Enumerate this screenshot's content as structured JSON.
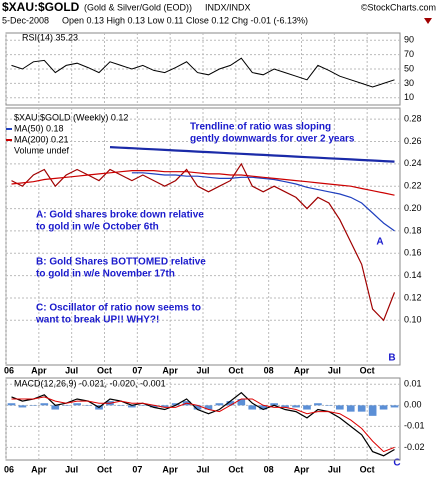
{
  "header": {
    "symbol": "$XAU:$GOLD",
    "description": "(Gold & Silver/Gold (EOD))",
    "exchange": "INDX/INDX",
    "source": "©StockCharts.com",
    "date": "5-Dec-2008",
    "quote": "Open 0.13 High 0.13 Low 0.11 Close 0.12 Chg -0.01 (-6.13%)"
  },
  "chart_data": [
    {
      "type": "line",
      "legend": "RSI(14) 35.23",
      "categories": [
        "06",
        null,
        null,
        "Apr",
        null,
        null,
        "Jul",
        null,
        null,
        "Oct",
        null,
        null,
        "07",
        null,
        null,
        "Apr",
        null,
        null,
        "Jul",
        null,
        null,
        "Oct",
        null,
        null,
        "08",
        null,
        null,
        "Apr",
        null,
        null,
        "Jul",
        null,
        null,
        "Oct",
        null,
        null
      ],
      "series": [
        {
          "color": "#000000",
          "values": [
            55,
            50,
            60,
            62,
            45,
            55,
            58,
            52,
            45,
            60,
            55,
            50,
            55,
            48,
            45,
            52,
            60,
            45,
            42,
            50,
            55,
            65,
            45,
            42,
            50,
            45,
            40,
            35,
            55,
            48,
            40,
            35,
            30,
            25,
            30,
            35
          ]
        }
      ],
      "ylim": [
        0,
        100
      ],
      "yticks": [
        90,
        70,
        50,
        30,
        10
      ],
      "grid": true
    },
    {
      "type": "line",
      "legend": "$XAU:$GOLD (Weekly) 0.12",
      "volume_label": "Volume undef",
      "categories": [
        "06",
        null,
        null,
        "Apr",
        null,
        null,
        "Jul",
        null,
        null,
        "Oct",
        null,
        null,
        "07",
        null,
        null,
        "Apr",
        null,
        null,
        "Jul",
        null,
        null,
        "Oct",
        null,
        null,
        "08",
        null,
        null,
        "Apr",
        null,
        null,
        "Jul",
        null,
        null,
        "Oct",
        null,
        null
      ],
      "series": [
        {
          "color": "#a00000",
          "width": 1.2,
          "values": [
            0.225,
            0.22,
            0.23,
            0.235,
            0.22,
            0.23,
            0.235,
            0.23,
            0.225,
            0.235,
            0.23,
            0.225,
            0.23,
            0.225,
            0.22,
            0.225,
            0.235,
            0.22,
            0.215,
            0.22,
            0.225,
            0.24,
            0.22,
            0.215,
            0.22,
            0.215,
            0.21,
            0.2,
            0.21,
            0.205,
            0.19,
            0.17,
            0.15,
            0.11,
            0.1,
            0.125
          ]
        },
        {
          "name": "MA(50) 0.18",
          "color": "#1f3fbf",
          "width": 1.2,
          "values": [
            null,
            null,
            null,
            null,
            null,
            null,
            null,
            null,
            null,
            null,
            null,
            0.232,
            0.232,
            0.231,
            0.23,
            0.23,
            0.229,
            0.229,
            0.228,
            0.227,
            0.227,
            0.228,
            0.228,
            0.227,
            0.226,
            0.224,
            0.222,
            0.219,
            0.217,
            0.215,
            0.213,
            0.21,
            0.205,
            0.196,
            0.187,
            0.18
          ]
        },
        {
          "name": "MA(200) 0.21",
          "color": "#cc0000",
          "width": 1.2,
          "values": [
            0.222,
            0.223,
            0.224,
            0.226,
            0.227,
            0.228,
            0.229,
            0.23,
            0.231,
            0.232,
            0.233,
            0.234,
            0.234,
            0.234,
            0.233,
            0.233,
            0.233,
            0.232,
            0.231,
            0.231,
            0.23,
            0.23,
            0.229,
            0.228,
            0.227,
            0.226,
            0.225,
            0.224,
            0.223,
            0.222,
            0.221,
            0.22,
            0.218,
            0.216,
            0.214,
            0.212
          ]
        },
        {
          "color": "#1a2aa8",
          "width": 2.2,
          "values": [
            null,
            null,
            null,
            null,
            null,
            null,
            null,
            null,
            null,
            0.255,
            0.2545,
            0.254,
            0.2535,
            0.253,
            0.2525,
            0.252,
            0.2515,
            0.251,
            0.2505,
            0.25,
            0.2495,
            0.249,
            0.2485,
            0.248,
            0.2475,
            0.247,
            0.2465,
            0.246,
            0.2455,
            0.245,
            0.2445,
            0.244,
            0.2435,
            0.243,
            0.2425,
            0.242
          ]
        }
      ],
      "ylim": [
        0.06,
        0.29
      ],
      "yticks": [
        0.28,
        0.26,
        0.24,
        0.22,
        {
          "value": 0.2,
          "label": "0.20"
        },
        0.18,
        0.16,
        0.14,
        0.12,
        {
          "value": 0.1,
          "label": "0.10"
        }
      ],
      "grid": true,
      "annotations": [
        [
          "Trendline of ratio was sloping",
          "gently downwards for over 2 years"
        ],
        [
          "A: Gold shares broke down relative",
          "to gold in w/e October 6th"
        ],
        [
          "B: Gold Shares BOTTOMED relative",
          "to gold in w/e November 17th"
        ],
        [
          "C: Oscillator of ratio now seems to",
          "want to break UP!! WHY?!"
        ]
      ],
      "markers": [
        "A",
        "B",
        "C"
      ]
    },
    {
      "type": "line",
      "legend": "MACD(12,26,9) -0.021, -0.020, -0.001",
      "categories": [
        "06",
        null,
        null,
        "Apr",
        null,
        null,
        "Jul",
        null,
        null,
        "Oct",
        null,
        null,
        "07",
        null,
        null,
        "Apr",
        null,
        null,
        "Jul",
        null,
        null,
        "Oct",
        null,
        null,
        "08",
        null,
        null,
        "Apr",
        null,
        null,
        "Jul",
        null,
        null,
        "Oct",
        null,
        null
      ],
      "series": [
        {
          "kind": "bar",
          "color": "#5b8fd6",
          "values": [
            0.001,
            -0.001,
            0,
            0.001,
            -0.002,
            0,
            0.001,
            0,
            -0.002,
            0.002,
            0,
            -0.001,
            0,
            -0.001,
            -0.001,
            0.001,
            0.002,
            -0.002,
            -0.002,
            0.001,
            0.002,
            0.003,
            -0.002,
            -0.002,
            0.001,
            -0.001,
            -0.001,
            -0.002,
            0.001,
            0,
            -0.002,
            -0.003,
            -0.003,
            -0.005,
            -0.002,
            -0.001
          ]
        },
        {
          "color": "#000000",
          "width": 1.2,
          "values": [
            0.004,
            0.002,
            0.003,
            0.005,
            0,
            0.001,
            0.003,
            0.002,
            -0.001,
            0.003,
            0.002,
            0,
            0.001,
            -0.001,
            -0.002,
            0,
            0.003,
            -0.002,
            -0.004,
            -0.002,
            0.002,
            0.006,
            0.001,
            -0.002,
            0,
            -0.002,
            -0.003,
            -0.006,
            -0.002,
            -0.003,
            -0.006,
            -0.01,
            -0.014,
            -0.022,
            -0.024,
            -0.021
          ]
        },
        {
          "color": "#dd0000",
          "width": 1,
          "values": [
            0.003,
            0.003,
            0.003,
            0.004,
            0.002,
            0.001,
            0.002,
            0.002,
            0.001,
            0.001,
            0.002,
            0.001,
            0.001,
            0,
            -0.001,
            -0.001,
            0.001,
            0,
            -0.002,
            -0.003,
            0,
            0.003,
            0.003,
            0,
            -0.001,
            -0.001,
            -0.002,
            -0.004,
            -0.003,
            -0.003,
            -0.004,
            -0.007,
            -0.011,
            -0.017,
            -0.022,
            -0.02
          ]
        }
      ],
      "ylim": [
        -0.026,
        0.013
      ],
      "yticks": [
        0.01,
        {
          "value": 0,
          "label": "0.00"
        },
        -0.01,
        -0.02
      ],
      "grid": true
    }
  ]
}
